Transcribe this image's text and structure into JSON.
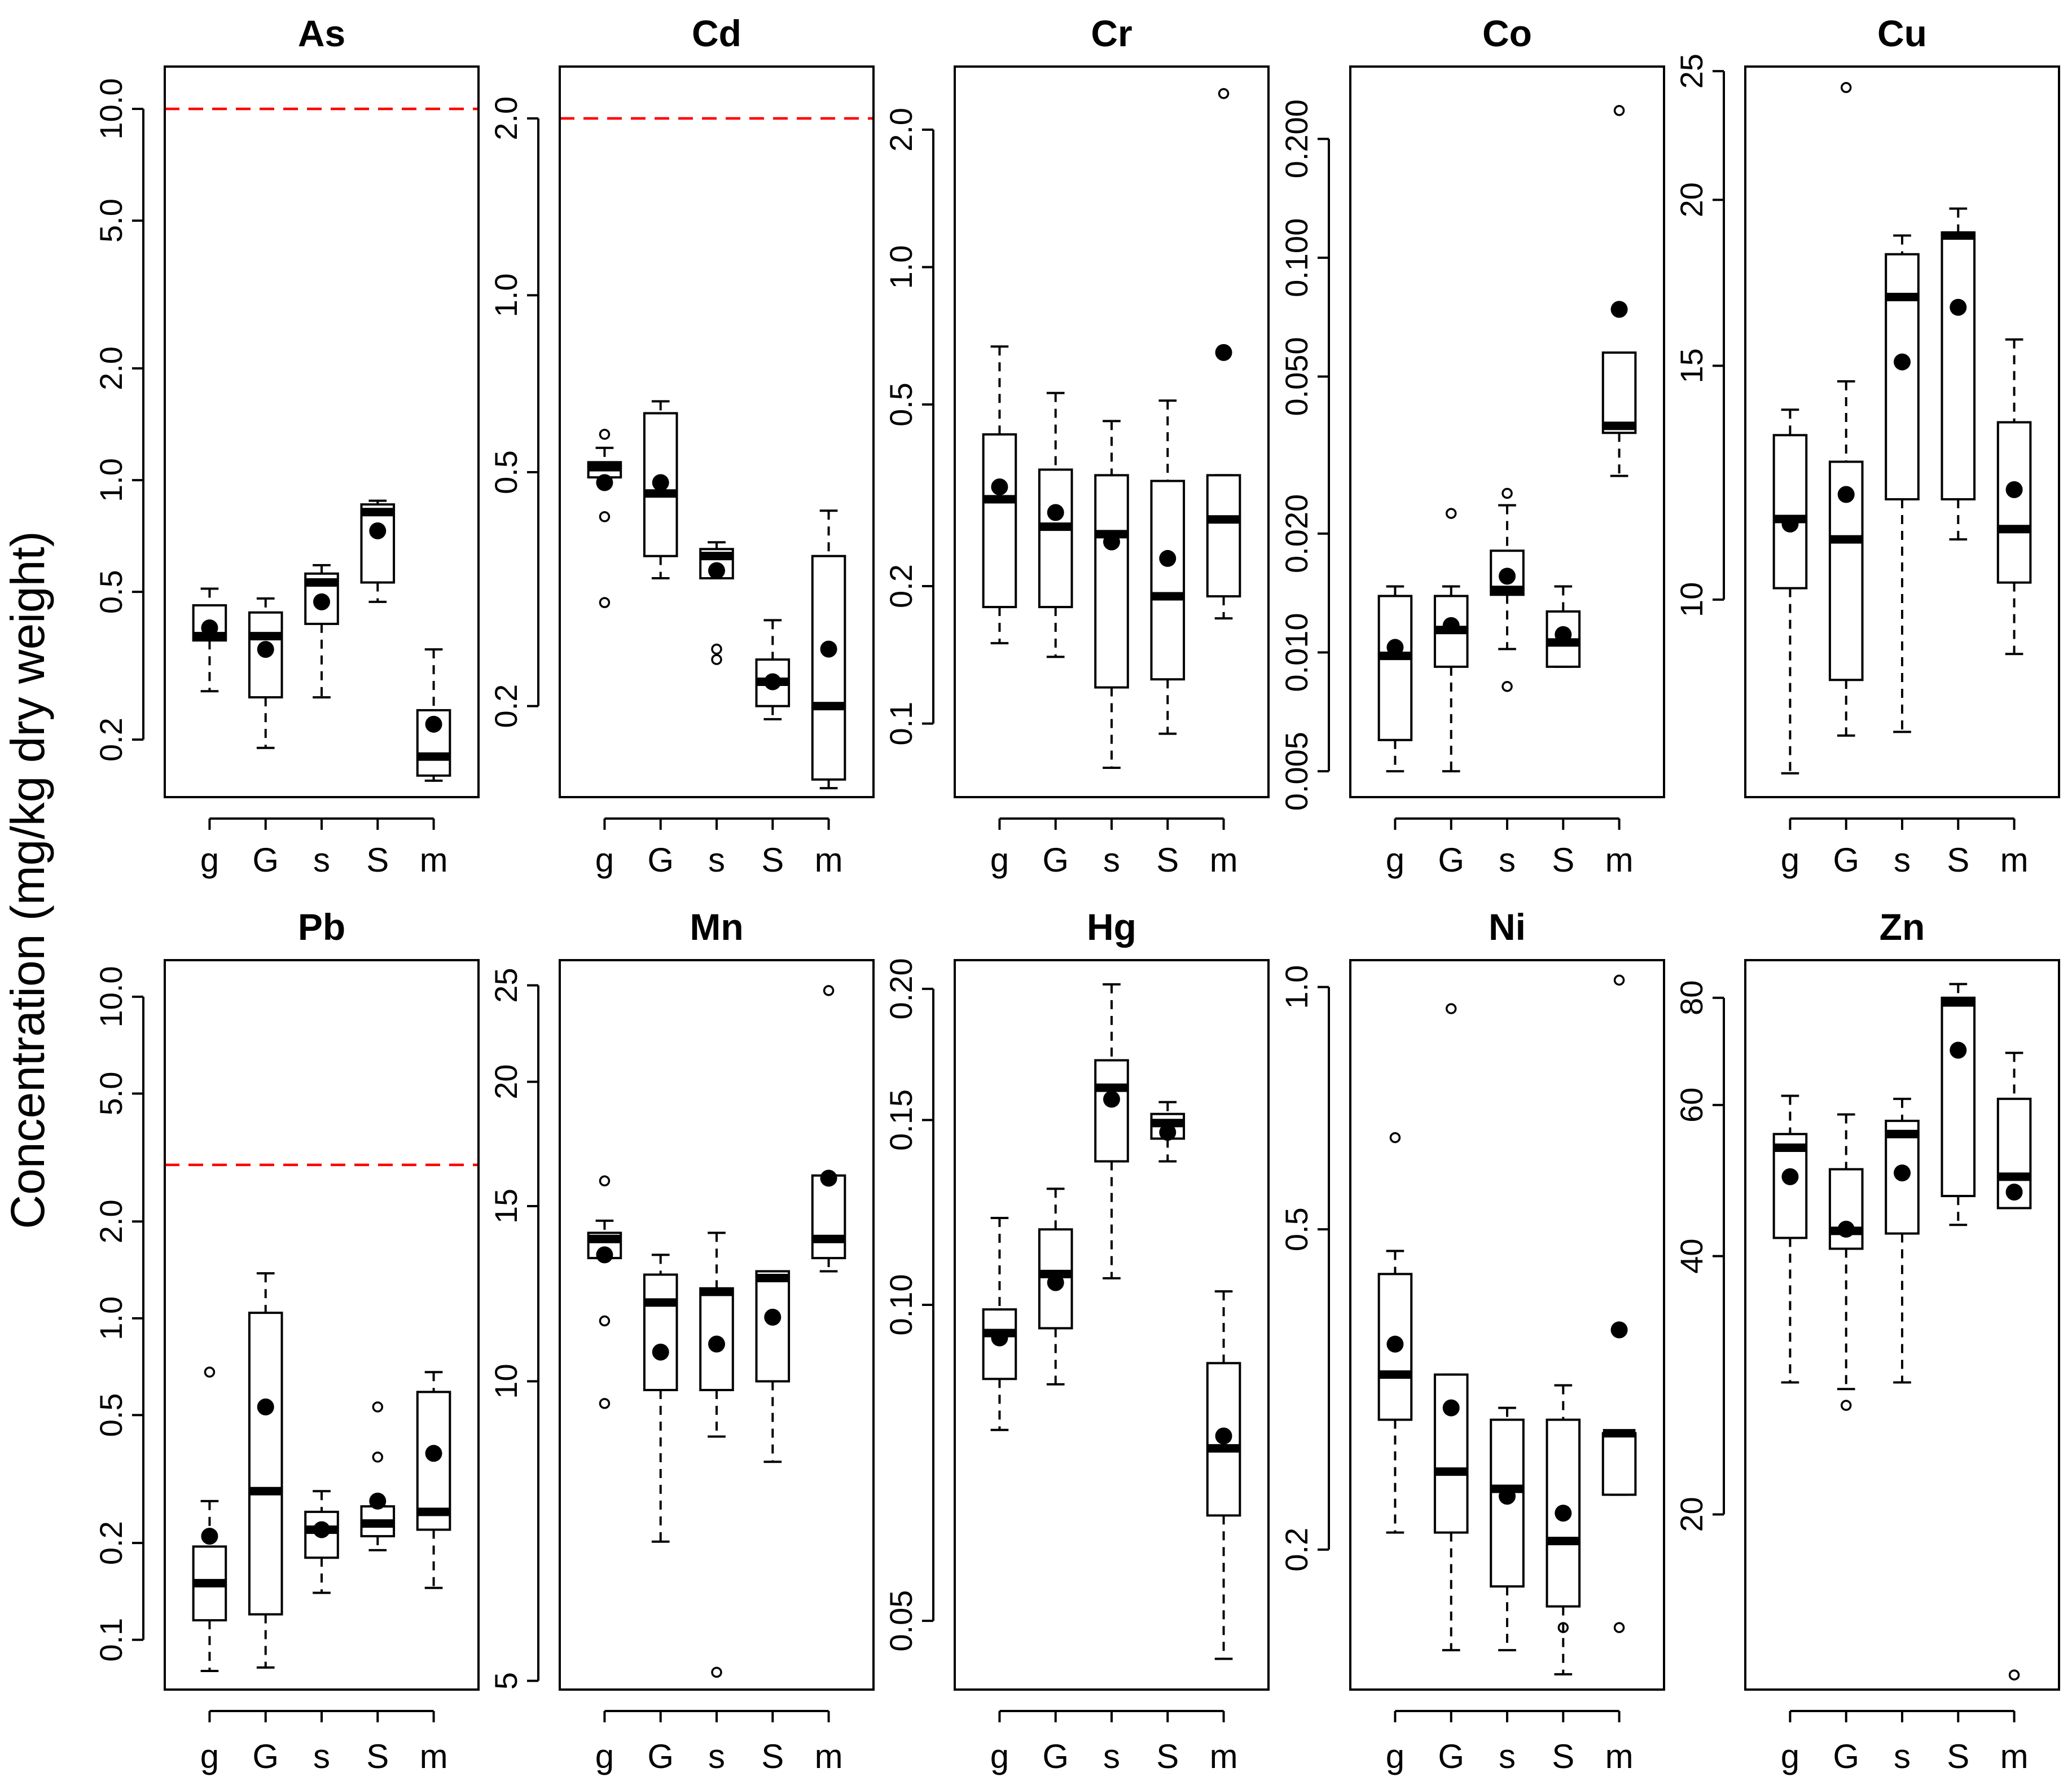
{
  "figure": {
    "ylabel": "Concentration (mg/kg dry weight)",
    "colors": {
      "threshold": "#ff0000",
      "ink": "#000000",
      "background": "#ffffff"
    }
  },
  "chart_data": [
    {
      "type": "boxplot",
      "title": "As",
      "scale": "log",
      "ylim": [
        0.14,
        13.0
      ],
      "yticks": [
        0.2,
        0.5,
        1.0,
        2.0,
        5.0,
        10.0
      ],
      "ytick_labels": [
        "0.2",
        "0.5",
        "1.0",
        "2.0",
        "5.0",
        "10.0"
      ],
      "categories": [
        "g",
        "G",
        "s",
        "S",
        "m"
      ],
      "threshold": 10.0,
      "boxes": [
        {
          "q1": 0.37,
          "median": 0.38,
          "q3": 0.46,
          "lower": 0.27,
          "upper": 0.51,
          "mean": 0.4,
          "outliers": []
        },
        {
          "q1": 0.26,
          "median": 0.38,
          "q3": 0.44,
          "lower": 0.19,
          "upper": 0.48,
          "mean": 0.35,
          "outliers": []
        },
        {
          "q1": 0.41,
          "median": 0.53,
          "q3": 0.56,
          "lower": 0.26,
          "upper": 0.59,
          "mean": 0.47,
          "outliers": []
        },
        {
          "q1": 0.53,
          "median": 0.82,
          "q3": 0.86,
          "lower": 0.47,
          "upper": 0.88,
          "mean": 0.73,
          "outliers": []
        },
        {
          "q1": 0.16,
          "median": 0.18,
          "q3": 0.24,
          "lower": 0.155,
          "upper": 0.35,
          "mean": 0.22,
          "outliers": []
        }
      ]
    },
    {
      "type": "boxplot",
      "title": "Cd",
      "scale": "log",
      "ylim": [
        0.14,
        2.45
      ],
      "yticks": [
        0.2,
        0.5,
        1.0,
        2.0
      ],
      "ytick_labels": [
        "0.2",
        "0.5",
        "1.0",
        "2.0"
      ],
      "categories": [
        "g",
        "G",
        "s",
        "S",
        "m"
      ],
      "threshold": 2.0,
      "boxes": [
        {
          "q1": 0.49,
          "median": 0.51,
          "q3": 0.52,
          "lower": 0.49,
          "upper": 0.55,
          "mean": 0.48,
          "outliers": [
            0.58,
            0.42,
            0.3
          ]
        },
        {
          "q1": 0.36,
          "median": 0.46,
          "q3": 0.63,
          "lower": 0.33,
          "upper": 0.66,
          "mean": 0.48,
          "outliers": []
        },
        {
          "q1": 0.33,
          "median": 0.36,
          "q3": 0.37,
          "lower": 0.33,
          "upper": 0.38,
          "mean": 0.34,
          "outliers": [
            0.25,
            0.24
          ]
        },
        {
          "q1": 0.2,
          "median": 0.22,
          "q3": 0.24,
          "lower": 0.19,
          "upper": 0.28,
          "mean": 0.22,
          "outliers": []
        },
        {
          "q1": 0.15,
          "median": 0.2,
          "q3": 0.36,
          "lower": 0.145,
          "upper": 0.43,
          "mean": 0.25,
          "outliers": []
        }
      ]
    },
    {
      "type": "boxplot",
      "title": "Cr",
      "scale": "log",
      "ylim": [
        0.069,
        2.75
      ],
      "yticks": [
        0.1,
        0.2,
        0.5,
        1.0,
        2.0
      ],
      "ytick_labels": [
        "0.1",
        "0.2",
        "0.5",
        "1.0",
        "2.0"
      ],
      "categories": [
        "g",
        "G",
        "s",
        "S",
        "m"
      ],
      "threshold": null,
      "boxes": [
        {
          "q1": 0.18,
          "median": 0.31,
          "q3": 0.43,
          "lower": 0.15,
          "upper": 0.67,
          "mean": 0.33,
          "outliers": []
        },
        {
          "q1": 0.18,
          "median": 0.27,
          "q3": 0.36,
          "lower": 0.14,
          "upper": 0.53,
          "mean": 0.29,
          "outliers": []
        },
        {
          "q1": 0.12,
          "median": 0.26,
          "q3": 0.35,
          "lower": 0.08,
          "upper": 0.46,
          "mean": 0.25,
          "outliers": []
        },
        {
          "q1": 0.125,
          "median": 0.19,
          "q3": 0.34,
          "lower": 0.095,
          "upper": 0.51,
          "mean": 0.23,
          "outliers": []
        },
        {
          "q1": 0.19,
          "median": 0.28,
          "q3": 0.35,
          "lower": 0.17,
          "upper": 0.35,
          "mean": 0.65,
          "outliers": [
            2.4
          ]
        }
      ]
    },
    {
      "type": "boxplot",
      "title": "Co",
      "scale": "log",
      "ylim": [
        0.0043,
        0.305
      ],
      "yticks": [
        0.005,
        0.01,
        0.02,
        0.05,
        0.1,
        0.2
      ],
      "ytick_labels": [
        "0.005",
        "0.010",
        "0.020",
        "0.050",
        "0.100",
        "0.200"
      ],
      "categories": [
        "g",
        "G",
        "s",
        "S",
        "m"
      ],
      "threshold": null,
      "boxes": [
        {
          "q1": 0.006,
          "median": 0.0098,
          "q3": 0.0139,
          "lower": 0.005,
          "upper": 0.0147,
          "mean": 0.0103,
          "outliers": []
        },
        {
          "q1": 0.0092,
          "median": 0.0114,
          "q3": 0.0139,
          "lower": 0.005,
          "upper": 0.0147,
          "mean": 0.0117,
          "outliers": [
            0.0225
          ]
        },
        {
          "q1": 0.014,
          "median": 0.0144,
          "q3": 0.0181,
          "lower": 0.0102,
          "upper": 0.0236,
          "mean": 0.0156,
          "outliers": [
            0.0253,
            0.0082
          ]
        },
        {
          "q1": 0.0092,
          "median": 0.0106,
          "q3": 0.0127,
          "lower": 0.0092,
          "upper": 0.0147,
          "mean": 0.0111,
          "outliers": []
        },
        {
          "q1": 0.036,
          "median": 0.0375,
          "q3": 0.0575,
          "lower": 0.028,
          "upper": 0.0575,
          "mean": 0.074,
          "outliers": [
            0.236
          ]
        }
      ]
    },
    {
      "type": "boxplot",
      "title": "Cu",
      "scale": "log",
      "ylim": [
        7.1,
        25.2
      ],
      "yticks": [
        10,
        15,
        20,
        25
      ],
      "ytick_labels": [
        "10",
        "15",
        "20",
        "25"
      ],
      "categories": [
        "g",
        "G",
        "s",
        "S",
        "m"
      ],
      "threshold": null,
      "boxes": [
        {
          "q1": 10.2,
          "median": 11.5,
          "q3": 13.3,
          "lower": 7.4,
          "upper": 13.9,
          "mean": 11.4,
          "outliers": []
        },
        {
          "q1": 8.7,
          "median": 11.1,
          "q3": 12.7,
          "lower": 7.9,
          "upper": 14.6,
          "mean": 12.0,
          "outliers": [
            24.3
          ]
        },
        {
          "q1": 11.9,
          "median": 16.9,
          "q3": 18.2,
          "lower": 7.95,
          "upper": 18.8,
          "mean": 15.1,
          "outliers": []
        },
        {
          "q1": 11.9,
          "median": 18.8,
          "q3": 18.9,
          "lower": 11.1,
          "upper": 19.7,
          "mean": 16.6,
          "outliers": []
        },
        {
          "q1": 10.3,
          "median": 11.3,
          "q3": 13.6,
          "lower": 9.1,
          "upper": 15.7,
          "mean": 12.1,
          "outliers": []
        }
      ]
    },
    {
      "type": "boxplot",
      "title": "Pb",
      "scale": "log",
      "ylim": [
        0.07,
        13.0
      ],
      "yticks": [
        0.1,
        0.2,
        0.5,
        1.0,
        2.0,
        5.0,
        10.0
      ],
      "ytick_labels": [
        "0.1",
        "0.2",
        "0.5",
        "1.0",
        "2.0",
        "5.0",
        "10.0"
      ],
      "categories": [
        "g",
        "G",
        "s",
        "S",
        "m"
      ],
      "threshold": 3.0,
      "boxes": [
        {
          "q1": 0.115,
          "median": 0.15,
          "q3": 0.195,
          "lower": 0.08,
          "upper": 0.27,
          "mean": 0.21,
          "outliers": [
            0.68
          ]
        },
        {
          "q1": 0.12,
          "median": 0.29,
          "q3": 1.04,
          "lower": 0.082,
          "upper": 1.38,
          "mean": 0.53,
          "outliers": []
        },
        {
          "q1": 0.18,
          "median": 0.22,
          "q3": 0.25,
          "lower": 0.14,
          "upper": 0.29,
          "mean": 0.22,
          "outliers": []
        },
        {
          "q1": 0.21,
          "median": 0.23,
          "q3": 0.26,
          "lower": 0.19,
          "upper": 0.26,
          "mean": 0.27,
          "outliers": [
            0.53,
            0.37
          ]
        },
        {
          "q1": 0.22,
          "median": 0.25,
          "q3": 0.59,
          "lower": 0.145,
          "upper": 0.68,
          "mean": 0.38,
          "outliers": []
        }
      ]
    },
    {
      "type": "boxplot",
      "title": "Mn",
      "scale": "log",
      "ylim": [
        4.9,
        26.5
      ],
      "yticks": [
        5,
        10,
        15,
        20,
        25
      ],
      "ytick_labels": [
        "5",
        "10",
        "15",
        "20",
        "25"
      ],
      "categories": [
        "g",
        "G",
        "s",
        "S",
        "m"
      ],
      "threshold": null,
      "boxes": [
        {
          "q1": 13.3,
          "median": 13.9,
          "q3": 14.1,
          "lower": 13.3,
          "upper": 14.5,
          "mean": 13.4,
          "outliers": [
            15.9,
            11.5,
            9.5
          ]
        },
        {
          "q1": 9.8,
          "median": 12.0,
          "q3": 12.8,
          "lower": 6.9,
          "upper": 13.4,
          "mean": 10.7,
          "outliers": []
        },
        {
          "q1": 9.8,
          "median": 12.3,
          "q3": 12.4,
          "lower": 8.8,
          "upper": 14.1,
          "mean": 10.9,
          "outliers": [
            5.1
          ]
        },
        {
          "q1": 10.0,
          "median": 12.7,
          "q3": 12.9,
          "lower": 8.3,
          "upper": 12.9,
          "mean": 11.6,
          "outliers": []
        },
        {
          "q1": 13.3,
          "median": 13.9,
          "q3": 16.1,
          "lower": 12.9,
          "upper": 16.1,
          "mean": 16.0,
          "outliers": [
            24.7
          ]
        }
      ]
    },
    {
      "type": "boxplot",
      "title": "Hg",
      "scale": "log",
      "ylim": [
        0.043,
        0.213
      ],
      "yticks": [
        0.05,
        0.1,
        0.15,
        0.2
      ],
      "ytick_labels": [
        "0.05",
        "0.10",
        "0.15",
        "0.20"
      ],
      "categories": [
        "g",
        "G",
        "s",
        "S",
        "m"
      ],
      "threshold": null,
      "boxes": [
        {
          "q1": 0.085,
          "median": 0.094,
          "q3": 0.099,
          "lower": 0.076,
          "upper": 0.121,
          "mean": 0.093,
          "outliers": []
        },
        {
          "q1": 0.095,
          "median": 0.107,
          "q3": 0.118,
          "lower": 0.084,
          "upper": 0.129,
          "mean": 0.105,
          "outliers": []
        },
        {
          "q1": 0.137,
          "median": 0.161,
          "q3": 0.171,
          "lower": 0.106,
          "upper": 0.202,
          "mean": 0.157,
          "outliers": []
        },
        {
          "q1": 0.144,
          "median": 0.149,
          "q3": 0.152,
          "lower": 0.137,
          "upper": 0.156,
          "mean": 0.146,
          "outliers": []
        },
        {
          "q1": 0.063,
          "median": 0.073,
          "q3": 0.088,
          "lower": 0.046,
          "upper": 0.103,
          "mean": 0.075,
          "outliers": []
        }
      ]
    },
    {
      "type": "boxplot",
      "title": "Ni",
      "scale": "log",
      "ylim": [
        0.134,
        1.08
      ],
      "yticks": [
        0.2,
        0.5,
        1.0
      ],
      "ytick_labels": [
        "0.2",
        "0.5",
        "1.0"
      ],
      "categories": [
        "g",
        "G",
        "s",
        "S",
        "m"
      ],
      "threshold": null,
      "boxes": [
        {
          "q1": 0.29,
          "median": 0.33,
          "q3": 0.44,
          "lower": 0.21,
          "upper": 0.47,
          "mean": 0.36,
          "outliers": [
            0.65
          ]
        },
        {
          "q1": 0.21,
          "median": 0.25,
          "q3": 0.33,
          "lower": 0.15,
          "upper": 0.33,
          "mean": 0.3,
          "outliers": [
            0.94
          ]
        },
        {
          "q1": 0.18,
          "median": 0.238,
          "q3": 0.29,
          "lower": 0.15,
          "upper": 0.3,
          "mean": 0.233,
          "outliers": []
        },
        {
          "q1": 0.17,
          "median": 0.205,
          "q3": 0.29,
          "lower": 0.14,
          "upper": 0.32,
          "mean": 0.222,
          "outliers": [
            0.16
          ]
        },
        {
          "q1": 0.234,
          "median": 0.279,
          "q3": 0.279,
          "lower": 0.234,
          "upper": 0.279,
          "mean": 0.375,
          "outliers": [
            1.02,
            0.16
          ]
        }
      ]
    },
    {
      "type": "boxplot",
      "title": "Zn",
      "scale": "log",
      "ylim": [
        12.5,
        88.5
      ],
      "yticks": [
        20,
        40,
        60,
        80
      ],
      "ytick_labels": [
        "20",
        "40",
        "60",
        "80"
      ],
      "categories": [
        "g",
        "G",
        "s",
        "S",
        "m"
      ],
      "threshold": null,
      "boxes": [
        {
          "q1": 42,
          "median": 53.5,
          "q3": 55.5,
          "lower": 28.5,
          "upper": 61.5,
          "mean": 49.5,
          "outliers": []
        },
        {
          "q1": 40.8,
          "median": 42.8,
          "q3": 50.5,
          "lower": 28.0,
          "upper": 58.5,
          "mean": 43.0,
          "outliers": [
            26.8
          ]
        },
        {
          "q1": 42.5,
          "median": 55.5,
          "q3": 57.5,
          "lower": 28.5,
          "upper": 61,
          "mean": 50.0,
          "outliers": []
        },
        {
          "q1": 47,
          "median": 79,
          "q3": 80,
          "lower": 43.5,
          "upper": 83,
          "mean": 69.5,
          "outliers": []
        },
        {
          "q1": 45.5,
          "median": 49.5,
          "q3": 61,
          "lower": 45.5,
          "upper": 69,
          "mean": 47.5,
          "outliers": [
            13.0
          ]
        }
      ]
    }
  ]
}
